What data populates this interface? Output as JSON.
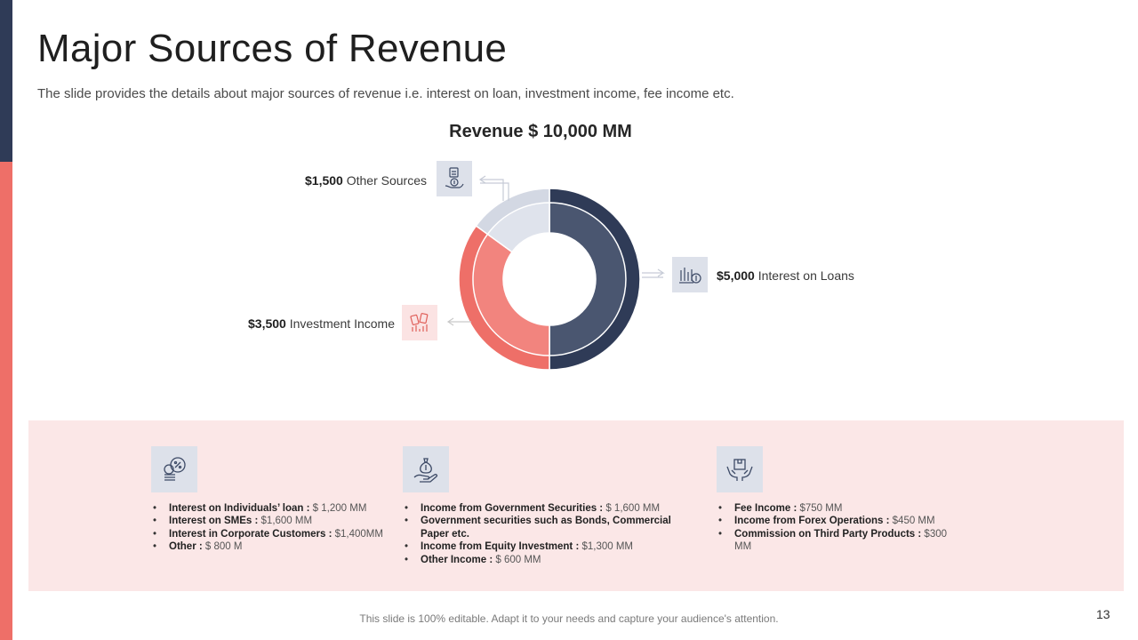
{
  "slide": {
    "title": "Major Sources of Revenue",
    "subtitle": "The slide provides the details about major sources of revenue i.e. interest on loan, investment income, fee income etc.",
    "footer": "This slide is 100% editable. Adapt it to your needs and capture your audience's attention.",
    "page_number": "13"
  },
  "chart_data": {
    "type": "pie",
    "variant": "donut",
    "title": "Revenue $ 10,000 MM",
    "unit": "$ MM",
    "categories": [
      "Interest on Loans",
      "Investment Income",
      "Other Sources"
    ],
    "values": [
      5000,
      3500,
      1500
    ],
    "colors": [
      "#2f3b57",
      "#ee6f68",
      "#d3d8e3"
    ],
    "labels": [
      {
        "amount": "$5,000",
        "text": " Interest on Loans",
        "icon": "money-chart-icon"
      },
      {
        "amount": "$3,500",
        "text": " Investment Income",
        "icon": "investment-icon"
      },
      {
        "amount": "$1,500",
        "text": " Other Sources",
        "icon": "hand-coin-icon"
      }
    ]
  },
  "details": [
    {
      "icon": "coins-percent-icon",
      "items": [
        {
          "label": "Interest on Individuals’ loan : ",
          "value": "$ 1,200 MM"
        },
        {
          "label": "Interest on SMEs : ",
          "value": "$1,600 MM"
        },
        {
          "label": "Interest in Corporate Customers : ",
          "value": "$1,400MM"
        },
        {
          "label": "Other : ",
          "value": "$ 800 M"
        }
      ]
    },
    {
      "icon": "money-bag-hand-icon",
      "items": [
        {
          "label": "Income from Government Securities : ",
          "value": "$ 1,600 MM"
        },
        {
          "label": "Government securities such as Bonds, Commercial Paper etc.",
          "value": ""
        },
        {
          "label": "Income from Equity Investment : ",
          "value": "$1,300 MM"
        },
        {
          "label": "Other Income : ",
          "value": "$ 600 MM"
        }
      ]
    },
    {
      "icon": "hands-box-icon",
      "items": [
        {
          "label": "Fee Income : ",
          "value": "$750 MM"
        },
        {
          "label": "Income from Forex Operations : ",
          "value": "$450 MM"
        },
        {
          "label": "Commission on Third Party Products : ",
          "value": "$300 MM"
        }
      ]
    }
  ]
}
